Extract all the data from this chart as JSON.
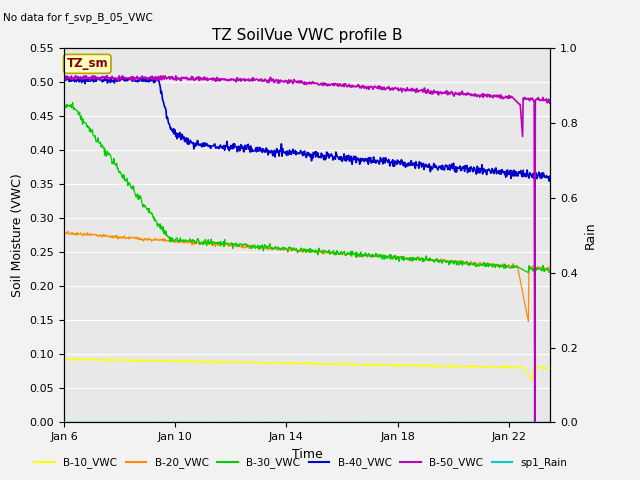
{
  "title": "TZ SoilVue VWC profile B",
  "no_data_text": "No data for f_svp_B_05_VWC",
  "tz_label": "TZ_sm",
  "xlabel": "Time",
  "ylabel_left": "Soil Moisture (VWC)",
  "ylabel_right": "Rain",
  "ylim_left": [
    0.0,
    0.55
  ],
  "ylim_right": [
    0.0,
    1.0
  ],
  "x_ticks_labels": [
    "Jan 6",
    "Jan 10",
    "Jan 14",
    "Jan 18",
    "Jan 22"
  ],
  "x_ticks_pos": [
    0,
    4,
    8,
    12,
    16
  ],
  "y_ticks_left": [
    0.0,
    0.05,
    0.1,
    0.15,
    0.2,
    0.25,
    0.3,
    0.35,
    0.4,
    0.45,
    0.5,
    0.55
  ],
  "y_ticks_right": [
    0.0,
    0.2,
    0.4,
    0.6,
    0.8,
    1.0
  ],
  "legend_entries": [
    "B-10_VWC",
    "B-20_VWC",
    "B-30_VWC",
    "B-40_VWC",
    "B-50_VWC",
    "sp1_Rain"
  ],
  "legend_colors": [
    "#ffff00",
    "#ff8c00",
    "#00cc00",
    "#0000cc",
    "#bb00bb",
    "#00cccc"
  ],
  "plot_bg_color": "#e8e8e8",
  "fig_bg_color": "#f2f2f2",
  "grid_color": "#ffffff",
  "title_fontsize": 11,
  "axis_fontsize": 9,
  "tick_fontsize": 8
}
